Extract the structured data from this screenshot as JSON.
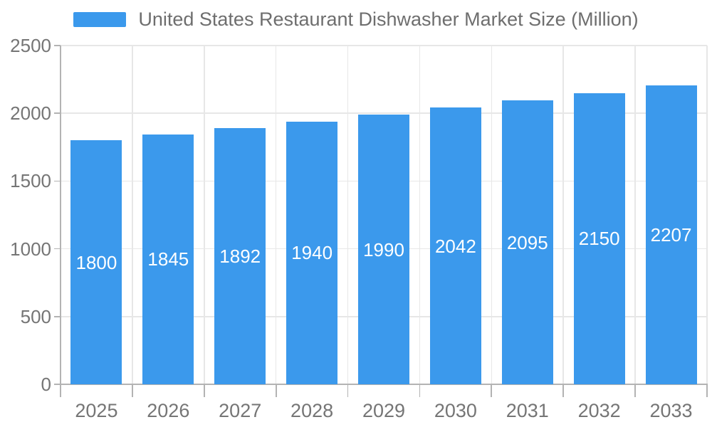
{
  "legend": {
    "label": "United States Restaurant Dishwasher Market Size (Million)"
  },
  "colors": {
    "bar": "#3b99ec",
    "axis_line": "#b3b3b3",
    "grid_line": "#e7e7e7",
    "axis_text": "#757575",
    "legend_text": "#6e6e6e",
    "bar_label_text": "#ffffff"
  },
  "chart_data": {
    "type": "bar",
    "title": "United States Restaurant Dishwasher Market Size (Million)",
    "categories": [
      "2025",
      "2026",
      "2027",
      "2028",
      "2029",
      "2030",
      "2031",
      "2032",
      "2033"
    ],
    "series": [
      {
        "name": "United States Restaurant Dishwasher Market Size (Million)",
        "values": [
          1800,
          1845,
          1892,
          1940,
          1990,
          2042,
          2095,
          2150,
          2207
        ],
        "color": "#3b99ec"
      }
    ],
    "value_labels_shown": true,
    "xlabel": "",
    "ylabel": "",
    "ylim": [
      0,
      2500
    ],
    "yticks": [
      0,
      500,
      1000,
      1500,
      2000,
      2500
    ],
    "grid": "on",
    "legend_position": "top-center"
  }
}
